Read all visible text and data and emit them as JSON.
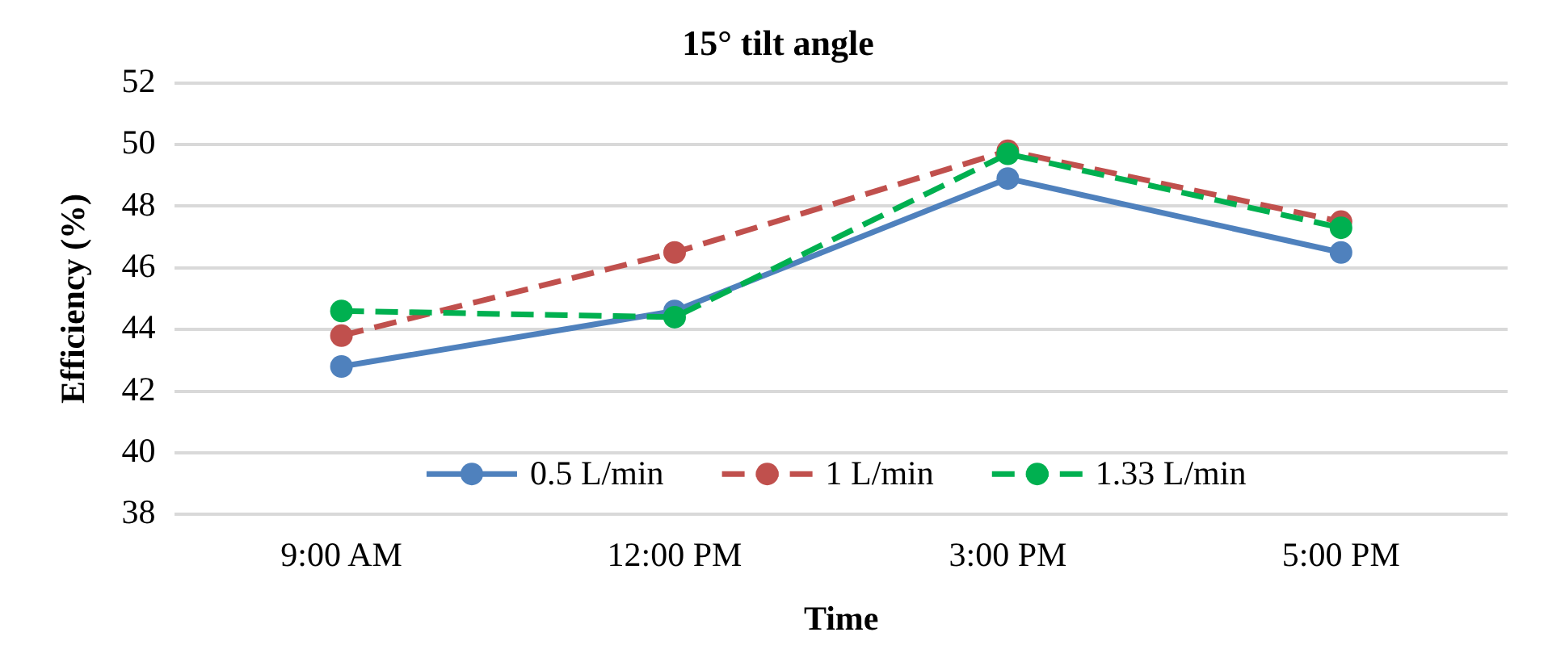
{
  "chart_data": {
    "type": "line",
    "title": "15° tilt angle",
    "xlabel": "Time",
    "ylabel": "Efficiency (%)",
    "categories": [
      "9:00 AM",
      "12:00 PM",
      "3:00 PM",
      "5:00 PM"
    ],
    "series": [
      {
        "name": "0.5 L/min",
        "color": "#4f81bd",
        "line_style": "solid",
        "values": [
          42.8,
          44.6,
          48.9,
          46.5
        ]
      },
      {
        "name": "1 L/min",
        "color": "#c0504d",
        "line_style": "dashed",
        "values": [
          43.8,
          46.5,
          49.8,
          47.5
        ]
      },
      {
        "name": "1.33 L/min",
        "color": "#00b050",
        "line_style": "dashed",
        "values": [
          44.6,
          44.4,
          49.7,
          47.3
        ]
      }
    ],
    "ylim": [
      38,
      52
    ],
    "yticks": [
      38,
      40,
      42,
      44,
      46,
      48,
      50,
      52
    ],
    "grid": "y",
    "legend": "bottom",
    "marker": "circle"
  }
}
